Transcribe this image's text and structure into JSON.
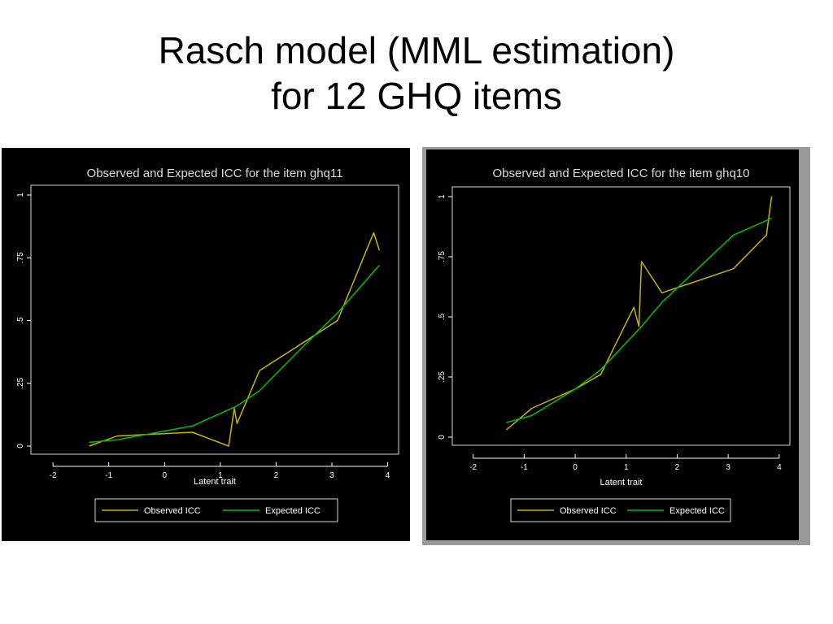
{
  "slide": {
    "title_line1": "Rasch model (MML estimation)",
    "title_line2": "for 12 GHQ items"
  },
  "chart_data": [
    {
      "type": "line",
      "title": "Observed and Expected ICC for the item ghq11",
      "xlabel": "Latent trait",
      "ylabel": "",
      "xlim": [
        -2.2,
        4.1
      ],
      "ylim": [
        0,
        1
      ],
      "xticks": [
        "-2",
        "-1",
        "0",
        "1",
        "2",
        "3",
        "4"
      ],
      "yticks": [
        "0",
        ".25",
        ".5",
        ".75",
        "1"
      ],
      "legend": "bottom",
      "series": [
        {
          "name": "Observed ICC",
          "color": "#c8b400",
          "x": [
            -1.35,
            -0.85,
            0.0,
            0.5,
            1.15,
            1.25,
            1.3,
            1.7,
            3.1,
            3.75,
            3.85
          ],
          "y": [
            0.0,
            0.04,
            0.05,
            0.055,
            0.0,
            0.15,
            0.09,
            0.3,
            0.5,
            0.85,
            0.78
          ]
        },
        {
          "name": "Expected ICC",
          "color": "#00c000",
          "x": [
            -1.35,
            -0.85,
            0.0,
            0.5,
            1.3,
            1.7,
            2.5,
            3.1,
            3.85
          ],
          "y": [
            0.015,
            0.025,
            0.06,
            0.08,
            0.16,
            0.22,
            0.4,
            0.53,
            0.72
          ]
        }
      ]
    },
    {
      "type": "line",
      "title": "Observed and Expected ICC for the item ghq10",
      "xlabel": "Latent trait",
      "ylabel": "",
      "xlim": [
        -2.2,
        4.1
      ],
      "ylim": [
        0,
        1
      ],
      "xticks": [
        "-2",
        "-1",
        "0",
        "1",
        "2",
        "3",
        "4"
      ],
      "yticks": [
        "0",
        ".25",
        ".5",
        ".75",
        "1"
      ],
      "legend": "bottom",
      "series": [
        {
          "name": "Observed ICC",
          "color": "#c8b400",
          "x": [
            -1.35,
            -0.85,
            0.0,
            0.5,
            1.15,
            1.25,
            1.3,
            1.7,
            3.1,
            3.75,
            3.85
          ],
          "y": [
            0.03,
            0.12,
            0.2,
            0.26,
            0.54,
            0.46,
            0.73,
            0.6,
            0.7,
            0.84,
            1.0
          ]
        },
        {
          "name": "Expected ICC",
          "color": "#00c000",
          "x": [
            -1.35,
            -0.85,
            0.0,
            0.5,
            1.3,
            1.7,
            2.5,
            3.1,
            3.85
          ],
          "y": [
            0.06,
            0.09,
            0.2,
            0.28,
            0.46,
            0.56,
            0.72,
            0.84,
            0.91
          ]
        }
      ]
    }
  ]
}
